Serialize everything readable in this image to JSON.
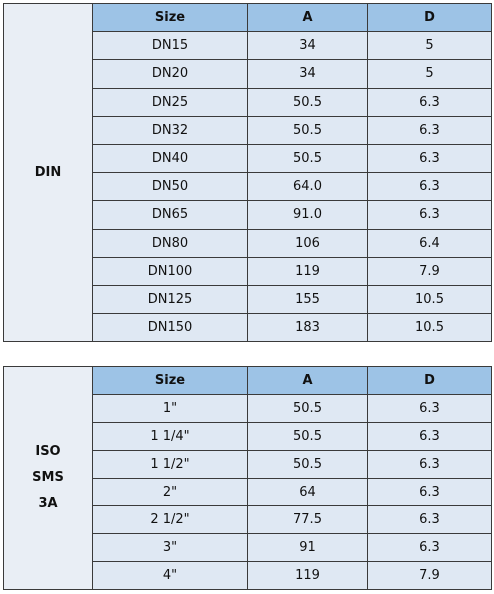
{
  "tables": [
    {
      "label": [
        "DIN"
      ],
      "header": [
        "Size",
        "A",
        "D"
      ],
      "rows": [
        [
          "DN15",
          "34",
          "5"
        ],
        [
          "DN20",
          "34",
          "5"
        ],
        [
          "DN25",
          "50.5",
          "6.3"
        ],
        [
          "DN32",
          "50.5",
          "6.3"
        ],
        [
          "DN40",
          "50.5",
          "6.3"
        ],
        [
          "DN50",
          "64.0",
          "6.3"
        ],
        [
          "DN65",
          "91.0",
          "6.3"
        ],
        [
          "DN80",
          "106",
          "6.4"
        ],
        [
          "DN100",
          "119",
          "7.9"
        ],
        [
          "DN125",
          "155",
          "10.5"
        ],
        [
          "DN150",
          "183",
          "10.5"
        ]
      ]
    },
    {
      "label": [
        "ISO",
        "SMS",
        "3A"
      ],
      "header": [
        "Size",
        "A",
        "D"
      ],
      "rows": [
        [
          "1\"",
          "50.5",
          "6.3"
        ],
        [
          "1 1/4\"",
          "50.5",
          "6.3"
        ],
        [
          "1 1/2\"",
          "50.5",
          "6.3"
        ],
        [
          "2\"",
          "64",
          "6.3"
        ],
        [
          "2 1/2\"",
          "77.5",
          "6.3"
        ],
        [
          "3\"",
          "91",
          "6.3"
        ],
        [
          "4\"",
          "119",
          "7.9"
        ]
      ]
    }
  ]
}
